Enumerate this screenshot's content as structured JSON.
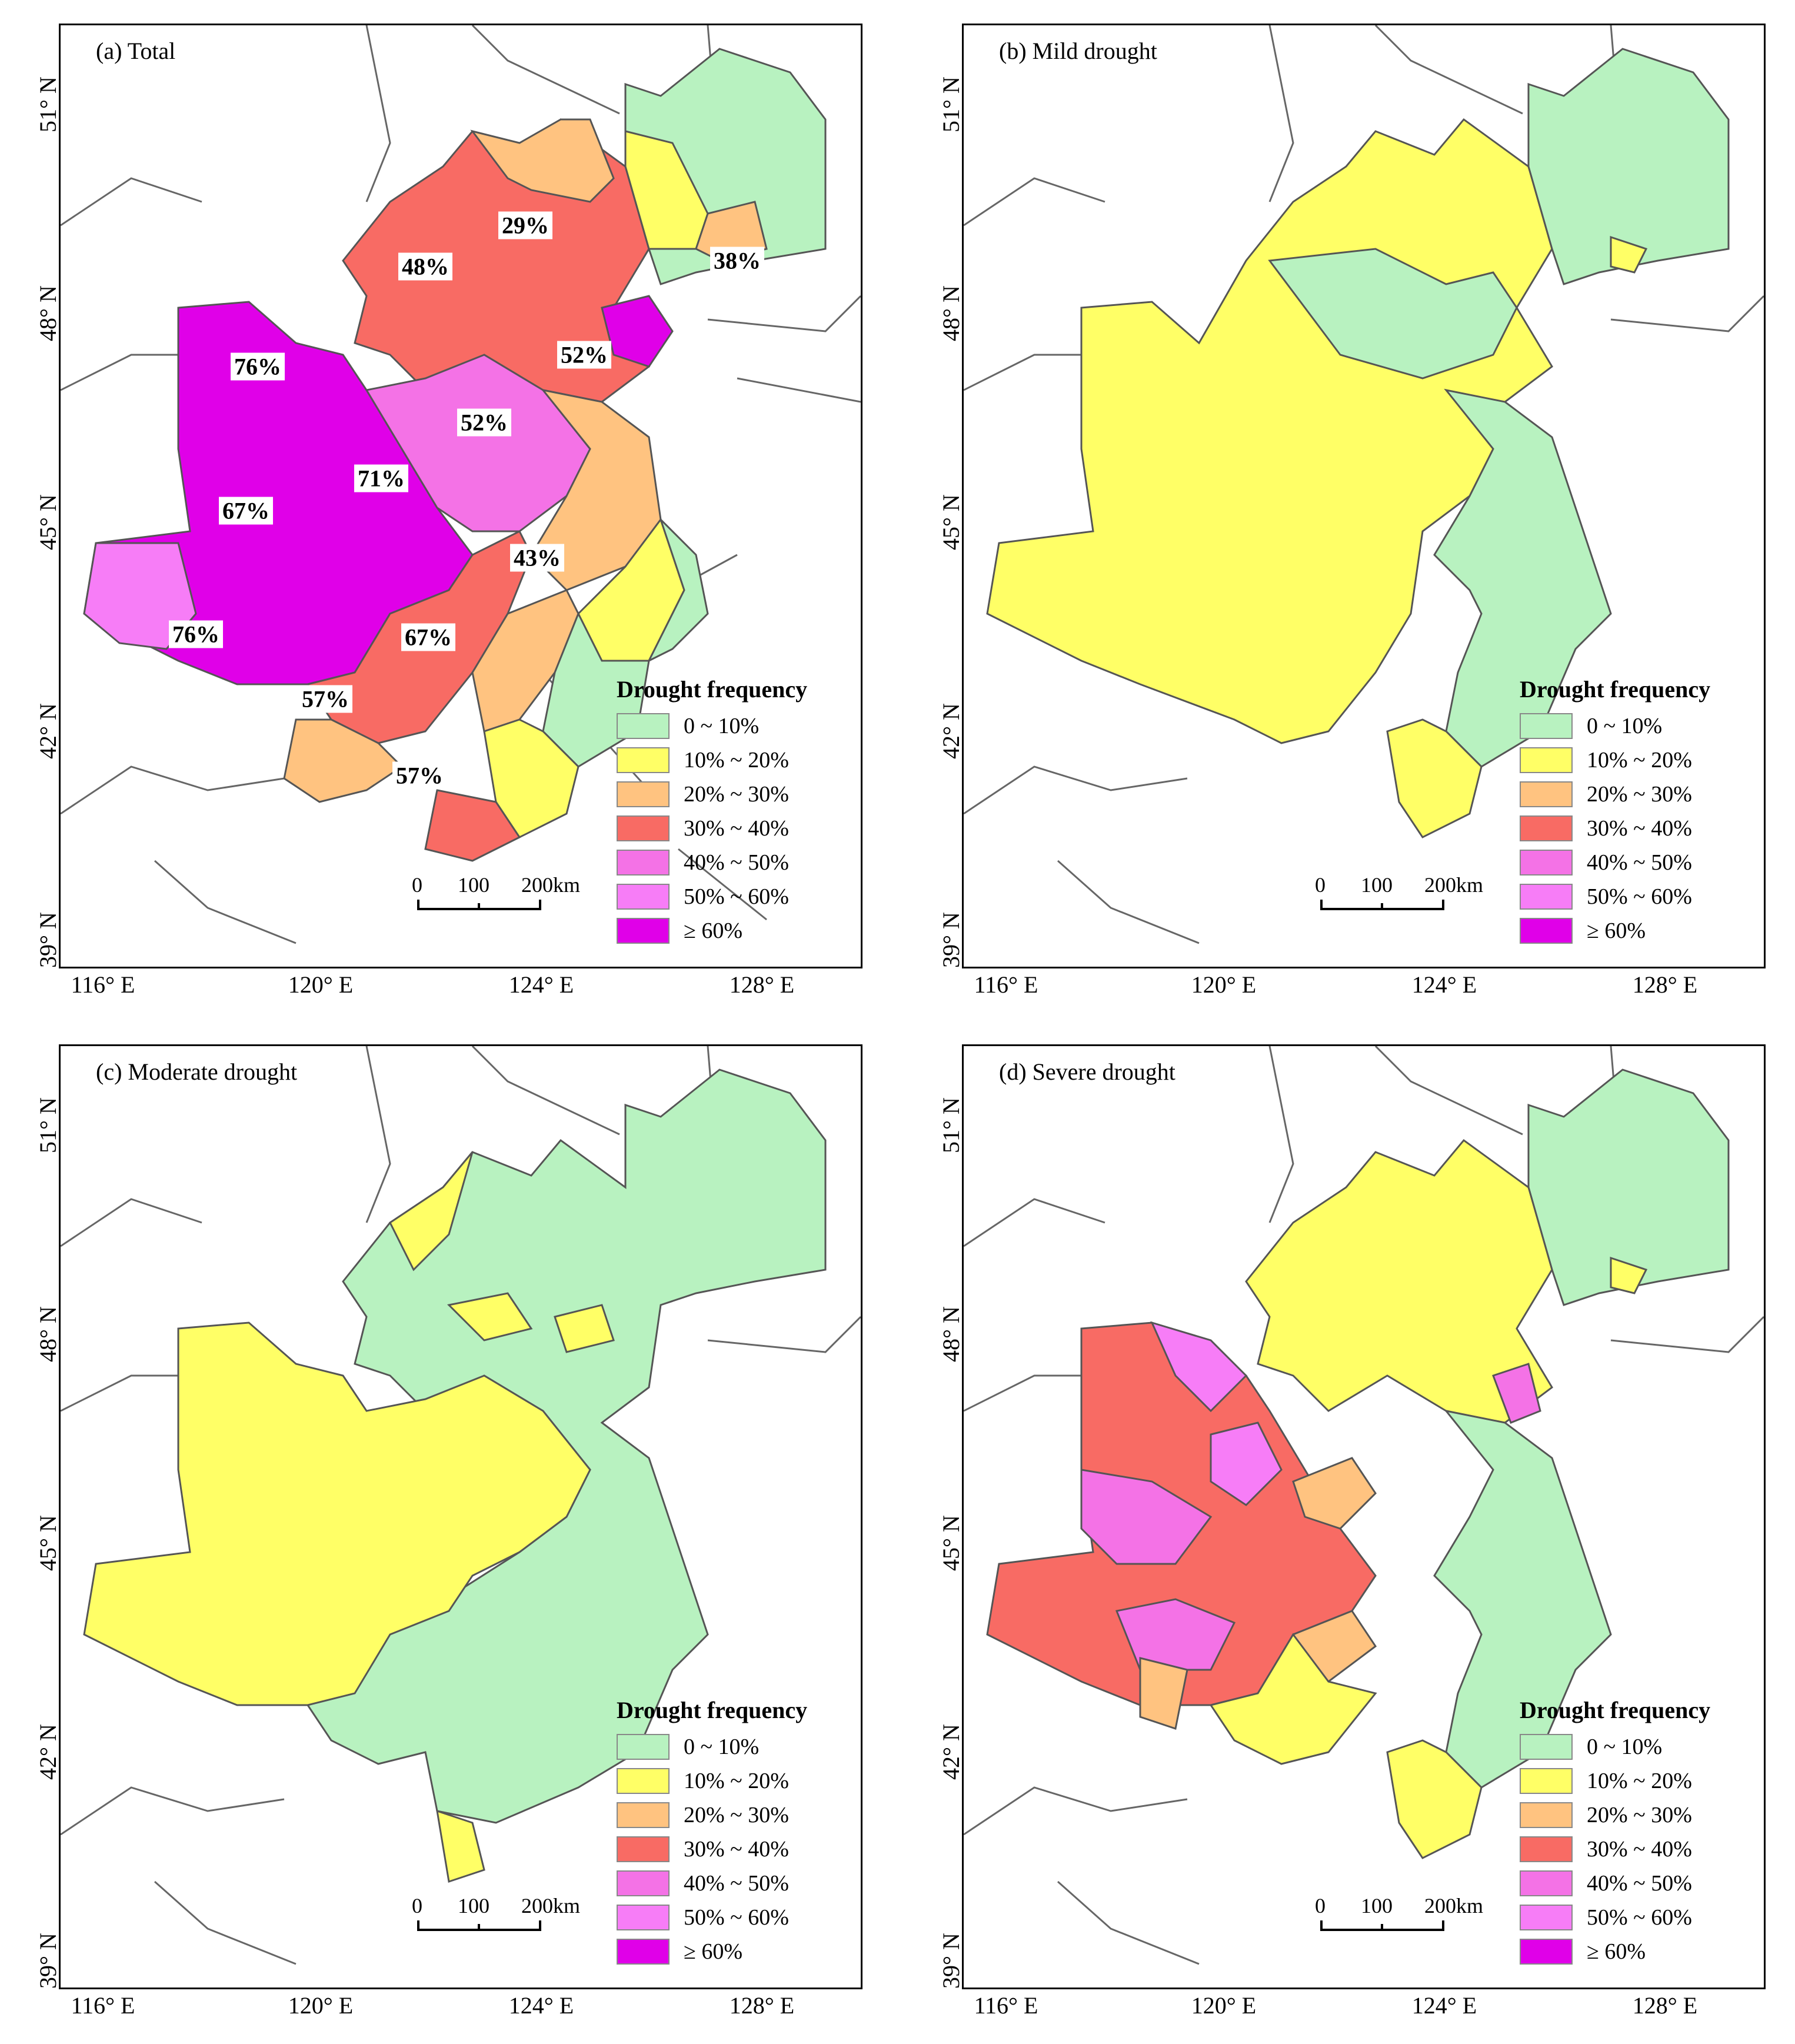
{
  "panels": [
    {
      "id": "a",
      "title": "(a)   Total"
    },
    {
      "id": "b",
      "title": "(b)   Mild drought"
    },
    {
      "id": "c",
      "title": "(c)   Moderate drought"
    },
    {
      "id": "d",
      "title": "(d)   Severe drought"
    }
  ],
  "axes": {
    "latitude": [
      "51° N",
      "48° N",
      "45° N",
      "42° N",
      "39° N"
    ],
    "longitude": [
      "116° E",
      "120° E",
      "124° E",
      "128° E"
    ]
  },
  "legend": {
    "title": "Drought frequency",
    "items": [
      {
        "label": "0 ~ 10%",
        "color": "#b8f2c0"
      },
      {
        "label": "10% ~ 20%",
        "color": "#ffff66"
      },
      {
        "label": "20% ~ 30%",
        "color": "#ffc380"
      },
      {
        "label": "30% ~ 40%",
        "color": "#f86b64"
      },
      {
        "label": "40% ~ 50%",
        "color": "#f472e6"
      },
      {
        "label": "50% ~ 60%",
        "color": "#f77df7"
      },
      {
        "label": "≥ 60%",
        "color": "#e000e8"
      }
    ]
  },
  "scale_bar": {
    "labels": [
      "0",
      "100",
      "200km"
    ]
  },
  "total_labels": [
    "29%",
    "48%",
    "38%",
    "52%",
    "76%",
    "52%",
    "71%",
    "67%",
    "43%",
    "76%",
    "67%",
    "57%",
    "57%"
  ]
}
